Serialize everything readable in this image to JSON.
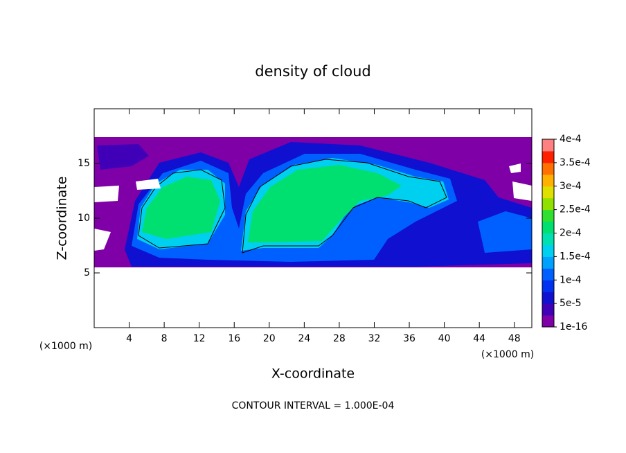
{
  "chart_data": {
    "type": "contour",
    "title": "density of cloud",
    "xlabel": "X-coordinate",
    "ylabel": "Z-coordinate",
    "x_unit_labels": [
      "(×1000 m)",
      "(×1000 m)"
    ],
    "footer": "CONTOUR INTERVAL = 1.000E-04",
    "xlim": [
      0,
      50
    ],
    "xticks": [
      4,
      8,
      12,
      16,
      20,
      24,
      28,
      32,
      36,
      40,
      44,
      48
    ],
    "ylim": [
      0,
      20
    ],
    "yticks": [
      5,
      10,
      15
    ],
    "colorbar": {
      "lim": [
        0,
        0.0004
      ],
      "ticks": [
        1e-16,
        {
          "value": 5e-05,
          "label": "5e-5"
        },
        {
          "value": 0.0001,
          "label": "1e-4"
        },
        {
          "value": 0.00015,
          "label": "1.5e-4"
        },
        {
          "value": 0.0002,
          "label": "2e-4"
        },
        {
          "value": 0.00025,
          "label": "2.5e-4"
        },
        {
          "value": 0.0003,
          "label": "3e-4"
        },
        {
          "value": 0.00035,
          "label": "3.5e-4"
        },
        {
          "value": 0.0004,
          "label": "4e-4"
        }
      ],
      "colors": [
        "#8000a8",
        "#4000b8",
        "#1010d0",
        "#0030f0",
        "#0060ff",
        "#00a0ff",
        "#00d0f0",
        "#00e0b0",
        "#00e070",
        "#30e030",
        "#90e000",
        "#e0e000",
        "#ffb000",
        "#ff7000",
        "#ff2000",
        "#ff8080"
      ]
    }
  }
}
